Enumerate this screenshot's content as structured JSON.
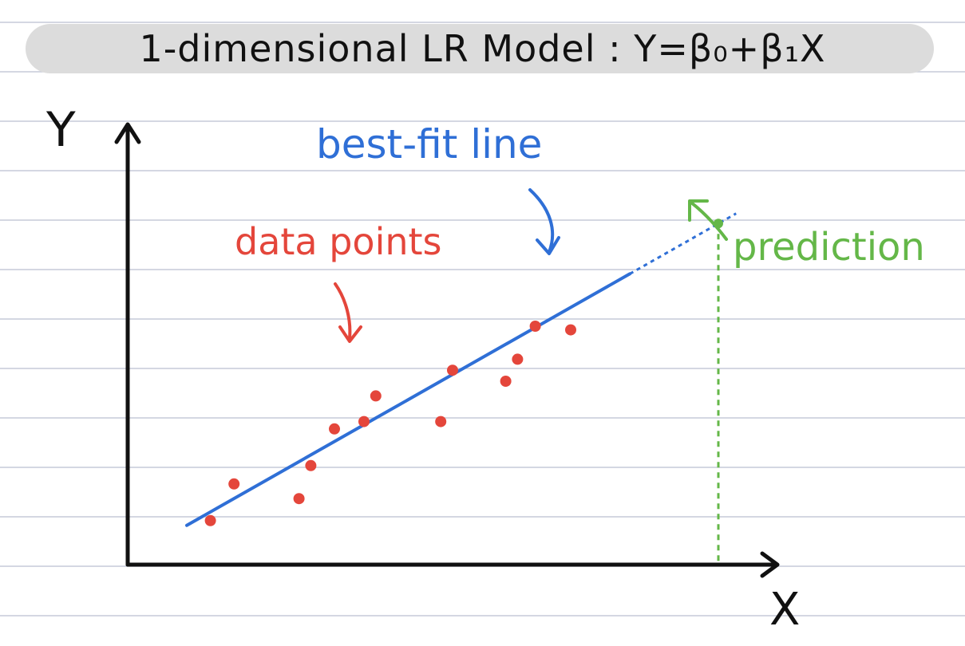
{
  "title": "1-dimensional LR Model : Y=β₀+β₁X",
  "axis_labels": {
    "x": "X",
    "y": "Y"
  },
  "annotations": {
    "best_fit": "best-fit line",
    "data_points": "data points",
    "prediction": "prediction"
  },
  "colors": {
    "title_bg": "#dcdcdc",
    "ruled_lines": "#c5cad8",
    "axis": "#111111",
    "data_points": "#e4463b",
    "best_fit_line": "#2f6fd6",
    "prediction": "#64b748"
  },
  "chart_data": {
    "type": "scatter",
    "x_range": [
      0,
      100
    ],
    "y_range": [
      0,
      100
    ],
    "points": [
      {
        "x": 14,
        "y": 12
      },
      {
        "x": 18,
        "y": 22
      },
      {
        "x": 29,
        "y": 18
      },
      {
        "x": 31,
        "y": 27
      },
      {
        "x": 35,
        "y": 37
      },
      {
        "x": 40,
        "y": 39
      },
      {
        "x": 42,
        "y": 46
      },
      {
        "x": 53,
        "y": 39
      },
      {
        "x": 55,
        "y": 53
      },
      {
        "x": 64,
        "y": 50
      },
      {
        "x": 66,
        "y": 56
      },
      {
        "x": 69,
        "y": 65
      },
      {
        "x": 75,
        "y": 64
      }
    ],
    "best_fit": {
      "slope": 0.914,
      "intercept": 1.57,
      "solid_x": [
        10,
        85
      ],
      "dashed_x": [
        85,
        103
      ]
    },
    "prediction": {
      "x": 100,
      "y": 93
    }
  }
}
